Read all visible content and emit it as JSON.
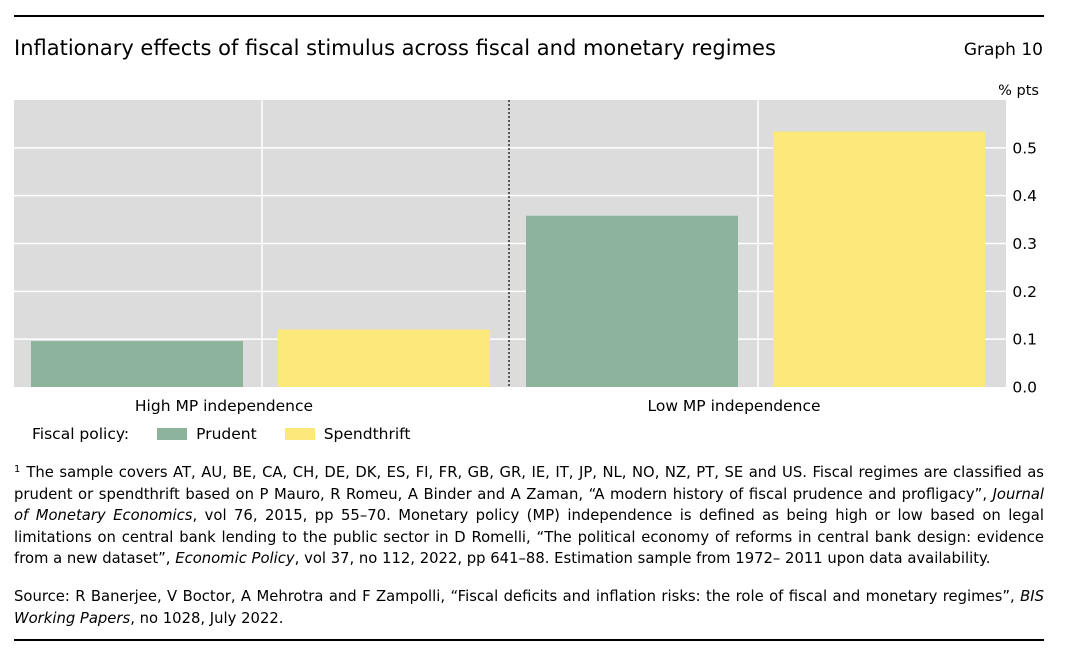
{
  "header": {
    "title": "Inflationary effects of fiscal stimulus across fiscal and monetary regimes",
    "graph_label": "Graph 10"
  },
  "chart_data": {
    "type": "bar",
    "unit_label": "% pts",
    "categories": [
      "High MP independence",
      "Low MP independence"
    ],
    "series": [
      {
        "name": "Prudent",
        "color": "#8db39c",
        "values": [
          0.096,
          0.358
        ]
      },
      {
        "name": "Spendthrift",
        "color": "#fde97a",
        "values": [
          0.12,
          0.534
        ]
      }
    ],
    "ylim": [
      0.0,
      0.6
    ],
    "yticks": [
      0.0,
      0.1,
      0.2,
      0.3,
      0.4,
      0.5
    ],
    "ytick_labels": [
      "0.0",
      "0.1",
      "0.2",
      "0.3",
      "0.4",
      "0.5"
    ],
    "plot_background": "#dcdcdc",
    "grid": true,
    "y_axis_position": "right",
    "category_separator": "dashed"
  },
  "legend": {
    "label": "Fiscal policy:",
    "items": [
      "Prudent",
      "Spendthrift"
    ]
  },
  "footnote": {
    "marker": "1",
    "parts": [
      {
        "text": "The sample covers AT, AU, BE, CA, CH, DE, DK, ES, FI, FR, GB, GR, IE, IT, JP, NL, NO, NZ, PT, SE and US. Fiscal regimes are classified as prudent or spendthrift based on P Mauro, R Romeu, A Binder and A Zaman, “A modern history of fiscal prudence and profligacy”, ",
        "italic": false
      },
      {
        "text": "Journal of Monetary Economics",
        "italic": true
      },
      {
        "text": ", vol 76, 2015, pp 55–70. Monetary policy (MP) independence is defined as being high or low based on legal limitations on central bank lending to the public sector in D Romelli, “The political economy of reforms in central bank design: evidence from a new dataset”, ",
        "italic": false
      },
      {
        "text": "Economic Policy",
        "italic": true
      },
      {
        "text": ", vol 37, no 112, 2022, pp 641–88. Estimation sample from 1972– 2011 upon data availability.",
        "italic": false
      }
    ]
  },
  "source": {
    "parts": [
      {
        "text": "Source: R Banerjee, V Boctor, A Mehrotra and F Zampolli, “Fiscal deficits and inflation risks: the role of fiscal and monetary regimes”, ",
        "italic": false
      },
      {
        "text": "BIS Working Papers",
        "italic": true
      },
      {
        "text": ", no 1028, July 2022.",
        "italic": false
      }
    ]
  }
}
